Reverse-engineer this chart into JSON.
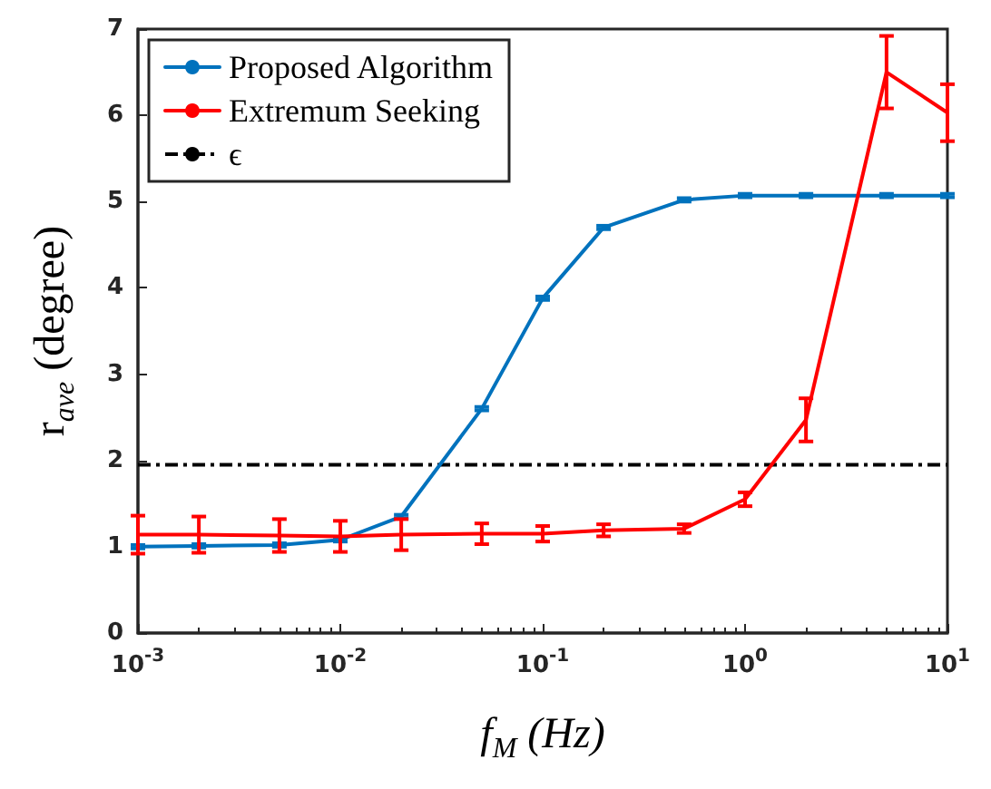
{
  "chart_data": {
    "type": "line",
    "xlabel": "f$_{M}$ (Hz)",
    "ylabel": "r$_{ave}$ (degree)",
    "log": "x",
    "xlim": [
      0.001,
      10
    ],
    "ylim": [
      0,
      7
    ],
    "xticks": [
      {
        "value": 0.001,
        "label": "10$^{-3}$"
      },
      {
        "value": 0.01,
        "label": "10$^{-2}$"
      },
      {
        "value": 0.1,
        "label": "10$^{-1}$"
      },
      {
        "value": 1,
        "label": "10$^{0}$"
      },
      {
        "value": 10,
        "label": "10$^{1}$"
      }
    ],
    "yticks": [
      0,
      1,
      2,
      3,
      4,
      5,
      6,
      7
    ],
    "x": [
      0.001,
      0.002,
      0.005,
      0.01,
      0.02,
      0.05,
      0.1,
      0.2,
      0.5,
      1,
      2,
      5,
      10
    ],
    "series": [
      {
        "name": "Proposed Algorithm",
        "color": "#0072bd",
        "values": [
          1.0,
          1.01,
          1.02,
          1.08,
          1.35,
          2.6,
          3.88,
          4.7,
          5.02,
          5.07,
          5.07,
          5.07,
          5.07
        ],
        "errors": [
          0.02,
          0.02,
          0.02,
          0.02,
          0.02,
          0.02,
          0.02,
          0.02,
          0.02,
          0.02,
          0.02,
          0.02,
          0.02
        ]
      },
      {
        "name": "Extremum Seeking",
        "color": "#ff0000",
        "values": [
          1.14,
          1.14,
          1.13,
          1.12,
          1.14,
          1.15,
          1.15,
          1.19,
          1.21,
          1.55,
          2.47,
          6.5,
          6.03
        ],
        "errors": [
          0.22,
          0.21,
          0.19,
          0.18,
          0.18,
          0.12,
          0.09,
          0.07,
          0.05,
          0.08,
          0.25,
          0.42,
          0.33
        ]
      }
    ],
    "ref_lines": [
      {
        "axis": "y",
        "value": 1.95,
        "label": "ϵ",
        "color": "#000000",
        "line_style": "dashed"
      }
    ],
    "legend": "top left",
    "grid": false,
    "marker": "none",
    "line_style": "solid"
  }
}
